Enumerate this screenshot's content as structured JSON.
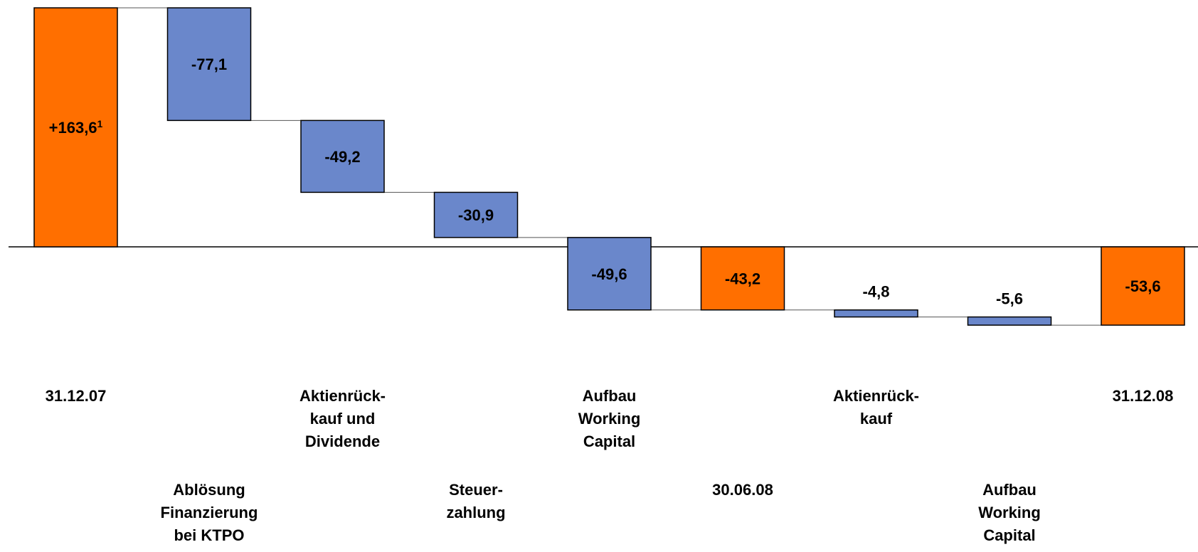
{
  "chart_data": {
    "type": "waterfall",
    "colors": {
      "total": "#FF6F00",
      "step": "#6A87CB",
      "stroke": "#000000"
    },
    "bars": [
      {
        "category": [
          "31.12.07"
        ],
        "kind": "total",
        "value": 163.6,
        "label": "+163,6",
        "sup": "1",
        "label_pos": "inside"
      },
      {
        "category": [
          "Ablösung",
          "Finanzierung",
          "bei KTPO"
        ],
        "kind": "step",
        "value": -77.1,
        "label": "-77,1",
        "label_pos": "inside"
      },
      {
        "category": [
          "Aktienrück-",
          "kauf und",
          "Dividende"
        ],
        "kind": "step",
        "value": -49.2,
        "label": "-49,2",
        "label_pos": "inside"
      },
      {
        "category": [
          "Steuer-",
          "zahlung"
        ],
        "kind": "step",
        "value": -30.9,
        "label": "-30,9",
        "label_pos": "inside"
      },
      {
        "category": [
          "Aufbau",
          "Working",
          "Capital"
        ],
        "kind": "step",
        "value": -49.6,
        "label": "-49,6",
        "label_pos": "inside"
      },
      {
        "category": [
          "30.06.08"
        ],
        "kind": "total",
        "value": -43.2,
        "label": "-43,2",
        "label_pos": "inside"
      },
      {
        "category": [
          "Aktienrück-",
          "kauf"
        ],
        "kind": "step",
        "value": -4.8,
        "label": "-4,8",
        "label_pos": "above"
      },
      {
        "category": [
          "Aufbau",
          "Working",
          "Capital"
        ],
        "kind": "step",
        "value": -5.6,
        "label": "-5,6",
        "label_pos": "above"
      },
      {
        "category": [
          "31.12.08"
        ],
        "kind": "total",
        "value": -53.6,
        "label": "-53,6",
        "label_pos": "inside"
      }
    ],
    "ylim": [
      -53.6,
      163.6
    ],
    "title": "",
    "xlabel": "",
    "ylabel": ""
  }
}
